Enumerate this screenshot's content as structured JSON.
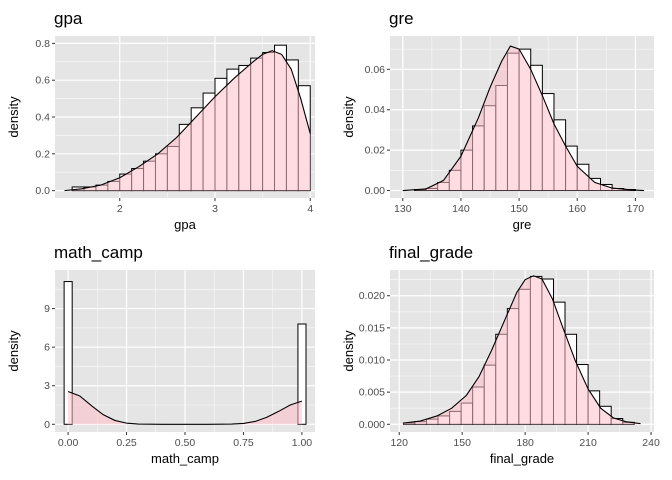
{
  "theme": {
    "panel_background": "#e5e5e5",
    "grid_major": "#ffffff",
    "bar_fill": "#ffffff",
    "bar_outline": "#000000",
    "density_fill": "#ffc0cb",
    "density_line": "#000000"
  },
  "chart_data": [
    {
      "type": "bar",
      "title": "gpa",
      "xlabel": "gpa",
      "ylabel": "density",
      "xlim": [
        1.32,
        4.05
      ],
      "ylim": [
        -0.04,
        0.84
      ],
      "xticks": [
        2,
        3,
        4
      ],
      "yticks": [
        0.0,
        0.2,
        0.4,
        0.6,
        0.8
      ],
      "x_tick_labels": [
        "2",
        "3",
        "4"
      ],
      "y_tick_labels": [
        "0.0",
        "0.2",
        "0.4",
        "0.6",
        "0.8"
      ],
      "bin_width": 0.125,
      "bin_starts": [
        1.5,
        1.625,
        1.75,
        1.875,
        2.0,
        2.125,
        2.25,
        2.375,
        2.5,
        2.625,
        2.75,
        2.875,
        3.0,
        3.125,
        3.25,
        3.375,
        3.5,
        3.625,
        3.75,
        3.875
      ],
      "values": [
        0.02,
        0.02,
        0.03,
        0.05,
        0.09,
        0.12,
        0.16,
        0.2,
        0.24,
        0.36,
        0.45,
        0.53,
        0.61,
        0.66,
        0.68,
        0.72,
        0.75,
        0.79,
        0.71,
        0.57
      ],
      "density": {
        "x": [
          1.42,
          1.6,
          1.8,
          2.0,
          2.2,
          2.4,
          2.6,
          2.8,
          3.0,
          3.2,
          3.4,
          3.5,
          3.6,
          3.7,
          3.8,
          3.9,
          4.0
        ],
        "y": [
          0.0,
          0.01,
          0.03,
          0.07,
          0.13,
          0.2,
          0.29,
          0.4,
          0.51,
          0.61,
          0.7,
          0.74,
          0.76,
          0.74,
          0.66,
          0.5,
          0.31
        ]
      }
    },
    {
      "type": "bar",
      "title": "gre",
      "xlabel": "gre",
      "ylabel": "density",
      "xlim": [
        127.8,
        173.2
      ],
      "ylim": [
        -0.0037,
        0.0765
      ],
      "xticks": [
        130,
        140,
        150,
        160,
        170
      ],
      "yticks": [
        0.0,
        0.02,
        0.04,
        0.06
      ],
      "x_tick_labels": [
        "130",
        "140",
        "150",
        "160",
        "170"
      ],
      "y_tick_labels": [
        "0.00",
        "0.02",
        "0.04",
        "0.06"
      ],
      "bin_width": 2,
      "bin_starts": [
        130,
        132,
        134,
        136,
        138,
        140,
        142,
        144,
        146,
        148,
        150,
        152,
        154,
        156,
        158,
        160,
        162,
        164,
        166,
        168
      ],
      "values": [
        0.0,
        0.0005,
        0.001,
        0.004,
        0.01,
        0.02,
        0.032,
        0.042,
        0.052,
        0.068,
        0.07,
        0.062,
        0.048,
        0.035,
        0.022,
        0.013,
        0.006,
        0.003,
        0.001,
        0.0005
      ],
      "density": {
        "x": [
          130,
          134,
          137,
          140,
          143,
          145,
          147,
          148.5,
          150,
          152,
          154,
          156,
          158,
          160,
          163,
          166,
          169,
          171.5
        ],
        "y": [
          0.0,
          0.0008,
          0.005,
          0.017,
          0.036,
          0.051,
          0.064,
          0.0715,
          0.07,
          0.06,
          0.047,
          0.033,
          0.022,
          0.012,
          0.004,
          0.0012,
          0.0004,
          0.0
        ]
      }
    },
    {
      "type": "bar",
      "title": "math_camp",
      "xlabel": "math_camp",
      "ylabel": "density",
      "xlim": [
        -0.056,
        1.056
      ],
      "ylim": [
        -0.6,
        12.0
      ],
      "xticks": [
        0.0,
        0.25,
        0.5,
        0.75,
        1.0
      ],
      "yticks": [
        0,
        3,
        6,
        9
      ],
      "x_tick_labels": [
        "0.00",
        "0.25",
        "0.50",
        "0.75",
        "1.00"
      ],
      "y_tick_labels": [
        "0",
        "3",
        "6",
        "9"
      ],
      "bin_width": 0.0345,
      "bin_starts": [
        -0.017,
        0.983
      ],
      "values": [
        11.1,
        7.8
      ],
      "density": {
        "x": [
          0.0,
          0.05,
          0.1,
          0.15,
          0.2,
          0.25,
          0.3,
          0.4,
          0.5,
          0.6,
          0.7,
          0.75,
          0.8,
          0.85,
          0.9,
          0.95,
          1.0
        ],
        "y": [
          2.55,
          2.2,
          1.45,
          0.75,
          0.3,
          0.09,
          0.02,
          0.0,
          0.0,
          0.0,
          0.02,
          0.07,
          0.22,
          0.55,
          1.0,
          1.5,
          1.8
        ]
      }
    },
    {
      "type": "bar",
      "title": "final_grade",
      "xlabel": "final_grade",
      "ylabel": "density",
      "xlim": [
        115.6,
        241.4
      ],
      "ylim": [
        -0.0012,
        0.024
      ],
      "xticks": [
        120,
        150,
        180,
        210,
        240
      ],
      "yticks": [
        0.0,
        0.005,
        0.01,
        0.015,
        0.02
      ],
      "x_tick_labels": [
        "120",
        "150",
        "180",
        "210",
        "240"
      ],
      "y_tick_labels": [
        "0.000",
        "0.005",
        "0.010",
        "0.015",
        "0.020"
      ],
      "bin_width": 5.5,
      "bin_starts": [
        122,
        127.5,
        133,
        138.5,
        144,
        149.5,
        155,
        160.5,
        166,
        171.5,
        177,
        182.5,
        188,
        193.5,
        199,
        204.5,
        210,
        215.5,
        221,
        226.5
      ],
      "values": [
        0.0002,
        0.0004,
        0.0008,
        0.0013,
        0.002,
        0.0033,
        0.0058,
        0.0092,
        0.014,
        0.018,
        0.021,
        0.023,
        0.0226,
        0.019,
        0.014,
        0.0093,
        0.0052,
        0.0028,
        0.0009,
        0.0003
      ],
      "density": {
        "x": [
          122,
          130,
          138,
          145,
          152,
          158,
          164,
          170,
          176,
          180,
          184,
          188,
          193,
          198,
          204,
          210,
          216,
          222,
          228,
          235
        ],
        "y": [
          0.0002,
          0.0005,
          0.0013,
          0.0025,
          0.0045,
          0.0074,
          0.0115,
          0.016,
          0.0205,
          0.0225,
          0.0231,
          0.0226,
          0.0195,
          0.015,
          0.0098,
          0.0055,
          0.0025,
          0.001,
          0.0004,
          0.0001
        ]
      }
    }
  ]
}
